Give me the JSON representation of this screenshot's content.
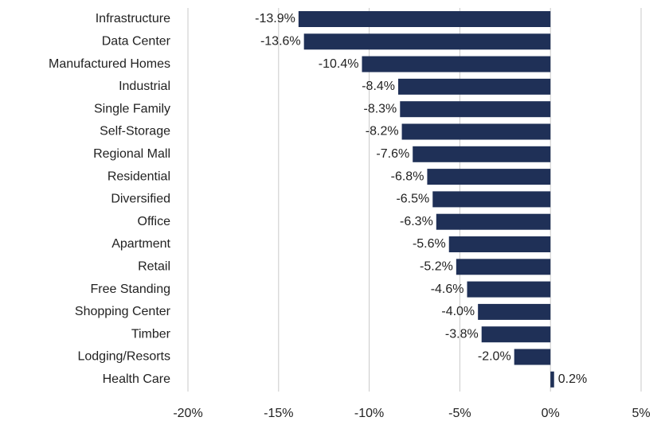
{
  "chart_data": {
    "type": "bar",
    "orientation": "horizontal",
    "categories": [
      "Infrastructure",
      "Data Center",
      "Manufactured Homes",
      "Industrial",
      "Single Family",
      "Self-Storage",
      "Regional Mall",
      "Residential",
      "Diversified",
      "Office",
      "Apartment",
      "Retail",
      "Free Standing",
      "Shopping Center",
      "Timber",
      "Lodging/Resorts",
      "Health Care"
    ],
    "values": [
      -13.9,
      -13.6,
      -10.4,
      -8.4,
      -8.3,
      -8.2,
      -7.6,
      -6.8,
      -6.5,
      -6.3,
      -5.6,
      -5.2,
      -4.6,
      -4.0,
      -3.8,
      -2.0,
      0.2
    ],
    "value_labels": [
      "-13.9%",
      "-13.6%",
      "-10.4%",
      "-8.4%",
      "-8.3%",
      "-8.2%",
      "-7.6%",
      "-6.8%",
      "-6.5%",
      "-6.3%",
      "-5.6%",
      "-5.2%",
      "-4.6%",
      "-4.0%",
      "-3.8%",
      "-2.0%",
      "0.2%"
    ],
    "color": "#1f3057",
    "xlim": [
      -20,
      5
    ],
    "xticks": [
      {
        "value": -20,
        "label": "-20%"
      },
      {
        "value": -15,
        "label": "-15%"
      },
      {
        "value": -10,
        "label": "-10%"
      },
      {
        "value": -5,
        "label": "-5%"
      },
      {
        "value": 0,
        "label": "0%"
      },
      {
        "value": 5,
        "label": "5%"
      }
    ],
    "grid": true
  }
}
